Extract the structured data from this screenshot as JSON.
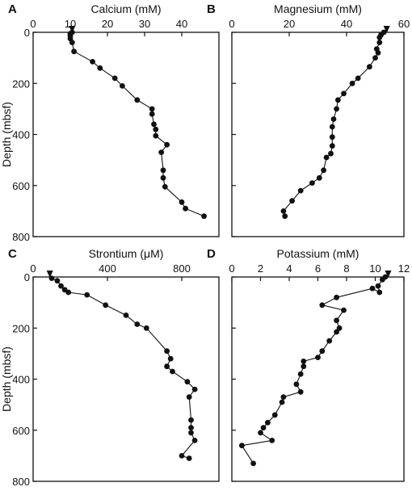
{
  "chart_data": [
    {
      "type": "line",
      "letter": "A",
      "title": "Calcium (mM)",
      "xlim": [
        0,
        50
      ],
      "ylim": [
        0,
        800
      ],
      "y_reversed": true,
      "xticks": [
        "0",
        "10",
        "20",
        "30",
        "40"
      ],
      "xtick_values": [
        0,
        10,
        20,
        30,
        40
      ],
      "yticks": [
        "0",
        "200",
        "400",
        "600",
        "800"
      ],
      "ytick_values": [
        0,
        200,
        400,
        600,
        800
      ],
      "ylabel": "Depth (mbsf)",
      "seawater_arrow": 10.5,
      "series": [
        {
          "x": [
            10.5,
            10,
            10,
            10,
            10.5,
            11,
            16,
            18,
            22,
            24,
            28,
            32,
            32,
            32.5,
            33,
            33,
            36,
            34.5,
            35,
            35,
            35.5,
            40,
            41,
            46
          ],
          "y": [
            0,
            5,
            15,
            25,
            40,
            75,
            115,
            140,
            180,
            210,
            265,
            300,
            320,
            360,
            380,
            405,
            440,
            470,
            540,
            570,
            605,
            665,
            690,
            720
          ]
        }
      ]
    },
    {
      "type": "line",
      "letter": "B",
      "title": "Magnesium (mM)",
      "xlim": [
        0,
        60
      ],
      "ylim": [
        0,
        800
      ],
      "y_reversed": true,
      "xticks": [
        "0",
        "20",
        "40",
        "60"
      ],
      "xtick_values": [
        0,
        20,
        40,
        60
      ],
      "yticks": [],
      "ytick_values": [
        0,
        200,
        400,
        600,
        800
      ],
      "seawater_arrow": 54,
      "series": [
        {
          "x": [
            53,
            52,
            51.5,
            51.5,
            50.5,
            51,
            50,
            48,
            44,
            42,
            39,
            37,
            36.5,
            35.5,
            35,
            35,
            35,
            34.5,
            33,
            32,
            30.5,
            28,
            24,
            21,
            18,
            18.5
          ],
          "y": [
            0,
            10,
            20,
            40,
            65,
            80,
            100,
            135,
            180,
            200,
            240,
            265,
            300,
            340,
            370,
            410,
            445,
            475,
            490,
            540,
            570,
            590,
            620,
            660,
            700,
            720
          ]
        }
      ]
    },
    {
      "type": "line",
      "letter": "C",
      "title": "Strontium (μM)",
      "xlim": [
        0,
        1000
      ],
      "ylim": [
        0,
        800
      ],
      "y_reversed": true,
      "xticks": [
        "0",
        "400",
        "800"
      ],
      "xtick_values": [
        0,
        400,
        800
      ],
      "yticks": [
        "0",
        "200",
        "400",
        "600",
        "800"
      ],
      "ytick_values": [
        0,
        200,
        400,
        600,
        800
      ],
      "ylabel": "Depth (mbsf)",
      "seawater_arrow": 90,
      "series": [
        {
          "x": [
            100,
            130,
            150,
            170,
            190,
            290,
            390,
            500,
            560,
            610,
            720,
            740,
            720,
            750,
            830,
            870,
            840,
            850,
            850,
            850,
            870,
            800,
            840
          ],
          "y": [
            5,
            15,
            35,
            50,
            60,
            70,
            110,
            150,
            185,
            200,
            290,
            320,
            350,
            370,
            410,
            440,
            470,
            560,
            590,
            610,
            640,
            700,
            710
          ]
        }
      ]
    },
    {
      "type": "line",
      "letter": "D",
      "title": "Potassium (mM)",
      "xlim": [
        0,
        12
      ],
      "ylim": [
        0,
        800
      ],
      "y_reversed": true,
      "xticks": [
        "0",
        "2",
        "4",
        "6",
        "8",
        "10",
        "12"
      ],
      "xtick_values": [
        0,
        2,
        4,
        6,
        8,
        10,
        12
      ],
      "yticks": [],
      "ytick_values": [
        0,
        200,
        400,
        600,
        800
      ],
      "seawater_arrow": 10.9,
      "series": [
        {
          "x": [
            10.7,
            10.5,
            10.2,
            10.3,
            9.8,
            7.3,
            6.3,
            7.8,
            7.3,
            7.5,
            7.3,
            6.8,
            6.3,
            6.0,
            5.0,
            5.0,
            4.8,
            4.5,
            4.8,
            3.6,
            3.5,
            3.0,
            2.5,
            2.2,
            2.0,
            2.8,
            0.7,
            1.5
          ],
          "y": [
            0,
            10,
            35,
            60,
            45,
            80,
            110,
            130,
            170,
            200,
            215,
            250,
            290,
            315,
            330,
            350,
            380,
            420,
            450,
            470,
            490,
            540,
            570,
            590,
            610,
            640,
            660,
            730
          ]
        }
      ]
    }
  ]
}
